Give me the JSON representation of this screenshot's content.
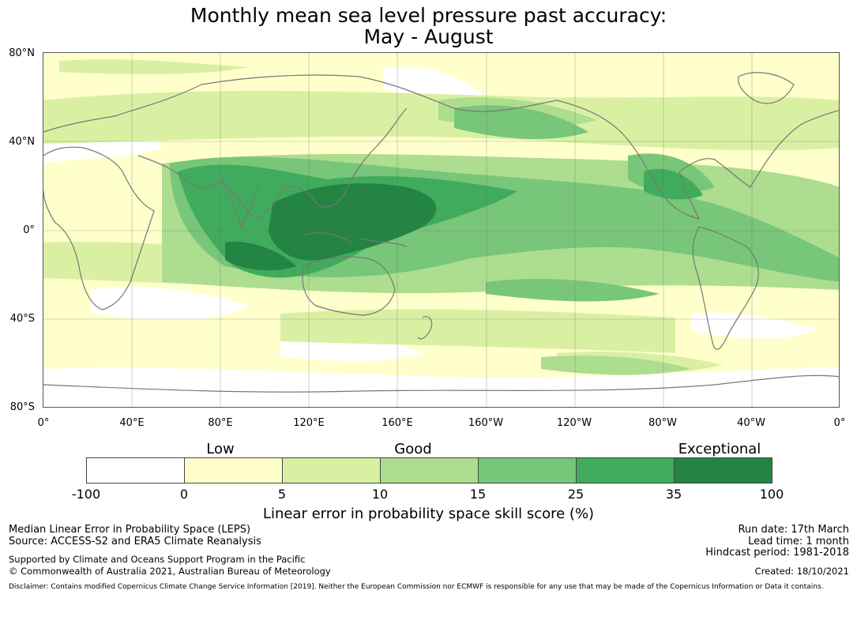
{
  "title": {
    "line1": "Monthly mean sea level pressure past accuracy:",
    "line2": "May - August"
  },
  "map": {
    "latitude_labels": [
      "80°N",
      "40°N",
      "0°",
      "40°S",
      "80°S"
    ],
    "longitude_labels": [
      "0°",
      "40°E",
      "80°E",
      "120°E",
      "160°E",
      "160°W",
      "120°W",
      "80°W",
      "40°W",
      "0°"
    ]
  },
  "colorbar": {
    "categories": [
      "Low",
      "Good",
      "Exceptional"
    ],
    "ticks": [
      "-100",
      "0",
      "5",
      "10",
      "15",
      "25",
      "35",
      "100"
    ],
    "colors": [
      "#ffffff",
      "#ffffcc",
      "#d9f0a3",
      "#addd8e",
      "#78c679",
      "#41ab5d",
      "#238443"
    ],
    "label": "Linear error in probability space skill score (%)"
  },
  "footer": {
    "left_line1": "Median Linear Error in Probability Space (LEPS)",
    "left_line2": "Source: ACCESS-S2 and ERA5 Climate Reanalysis",
    "support_line1": "Supported by Climate and Oceans Support Program in the Pacific",
    "support_line2": "© Commonwealth of Australia 2021, Australian Bureau of Meteorology",
    "run_date": "Run date: 17th March",
    "lead_time": "Lead time: 1 month",
    "hindcast": "Hindcast period: 1981-2018",
    "created": "Created: 18/10/2021",
    "disclaimer": "Disclaimer: Contains modified Copernicus Climate Change Service Information [2019]. Neither the European Commission nor ECMWF is responsible for any use that may be made of the Copernicus Information or Data it contains."
  }
}
